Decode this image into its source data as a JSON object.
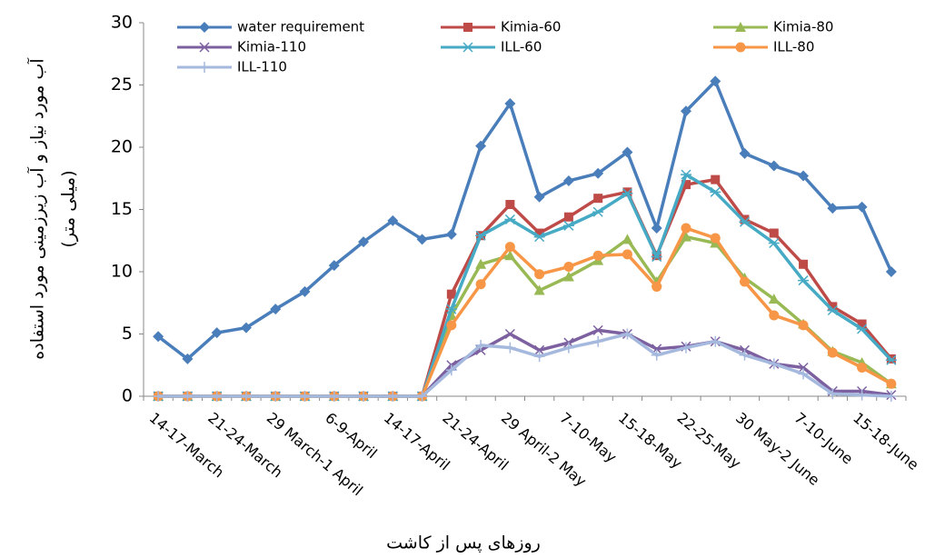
{
  "chart_data": {
    "type": "line",
    "y_label": "آب مورد نیاز و آب زیرزمینی مورد استفاده",
    "y_label_unit": "(میلی متر)",
    "x_label": "روزهای پس از کاشت",
    "categories": [
      "14-17-March",
      null,
      "21-24-March",
      null,
      "29 March-1 April",
      null,
      "6-9-April",
      null,
      "14-17-April",
      null,
      "21-24-April",
      null,
      "29 April-2 May",
      null,
      "7-10-May",
      null,
      "15-18-May",
      null,
      "22-25-May",
      null,
      "30 May-2 June",
      null,
      "7-10-June",
      null,
      "15-18-June",
      null
    ],
    "ylim": [
      0,
      30
    ],
    "yticks": [
      0,
      5,
      10,
      15,
      20,
      25,
      30
    ],
    "grid": false,
    "legend": "top",
    "series": [
      {
        "name": "water requirement",
        "color": "#4a7ebb",
        "marker": "diamond",
        "values": [
          4.8,
          3.0,
          5.1,
          5.5,
          7.0,
          8.4,
          10.5,
          12.4,
          14.1,
          12.6,
          13.0,
          20.1,
          23.5,
          16.0,
          17.3,
          17.9,
          19.6,
          13.5,
          22.9,
          25.3,
          19.5,
          18.5,
          17.7,
          15.1,
          15.2,
          10.0
        ]
      },
      {
        "name": "Kimia-60",
        "color": "#be4b48",
        "marker": "square",
        "values": [
          0,
          0,
          0,
          0,
          0,
          0,
          0,
          0,
          0,
          0,
          8.2,
          12.9,
          15.4,
          13.1,
          14.4,
          15.9,
          16.4,
          11.3,
          17.0,
          17.4,
          14.2,
          13.1,
          10.6,
          7.2,
          5.8,
          3.0
        ]
      },
      {
        "name": "Kimia-80",
        "color": "#98b954",
        "marker": "triangle",
        "values": [
          0,
          0,
          0,
          0,
          0,
          0,
          0,
          0,
          0,
          0,
          6.5,
          10.6,
          11.3,
          8.5,
          9.6,
          10.9,
          12.6,
          9.2,
          12.8,
          12.3,
          9.5,
          7.8,
          5.8,
          3.6,
          2.7,
          1.0
        ]
      },
      {
        "name": "Kimia-110",
        "color": "#7d60a0",
        "marker": "x",
        "values": [
          0,
          0,
          0,
          0,
          0,
          0,
          0,
          0,
          0,
          0,
          2.5,
          3.7,
          5.0,
          3.7,
          4.3,
          5.3,
          5.0,
          3.8,
          4.0,
          4.4,
          3.7,
          2.6,
          2.3,
          0.4,
          0.4,
          0.1
        ]
      },
      {
        "name": "ILL-60",
        "color": "#46aac5",
        "marker": "star",
        "values": [
          0,
          0,
          0,
          0,
          0,
          0,
          0,
          0,
          0,
          0,
          7.0,
          12.9,
          14.2,
          12.8,
          13.7,
          14.8,
          16.3,
          11.2,
          17.8,
          16.4,
          14.0,
          12.3,
          9.3,
          6.9,
          5.4,
          2.9
        ]
      },
      {
        "name": "ILL-80",
        "color": "#f79646",
        "marker": "circle",
        "values": [
          0,
          0,
          0,
          0,
          0,
          0,
          0,
          0,
          0,
          0,
          5.7,
          9.0,
          12.0,
          9.8,
          10.4,
          11.3,
          11.4,
          8.8,
          13.5,
          12.7,
          9.2,
          6.5,
          5.7,
          3.5,
          2.3,
          1.0
        ]
      },
      {
        "name": "ILL-110",
        "color": "#a5b8de",
        "marker": "plus",
        "values": [
          0,
          0,
          0,
          0,
          0,
          0,
          0,
          0,
          0,
          0,
          2.1,
          4.1,
          3.9,
          3.2,
          3.9,
          4.4,
          5.0,
          3.3,
          3.9,
          4.4,
          3.3,
          2.6,
          1.8,
          0.2,
          0.1,
          0.0
        ]
      }
    ]
  }
}
